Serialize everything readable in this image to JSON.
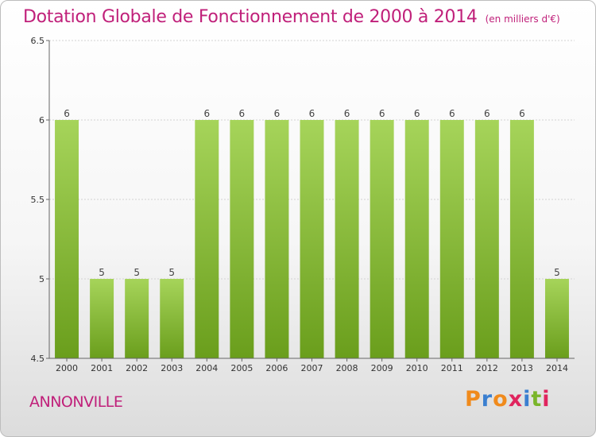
{
  "header": {
    "title": "Dotation Globale de Fonctionnement de 2000 à 2014",
    "subtitle": "(en milliers d'€)"
  },
  "footer": {
    "commune": "ANNONVILLE",
    "logo_letters": [
      "P",
      "r",
      "o",
      "x",
      "i",
      "t",
      "i"
    ],
    "logo_colors": [
      "#f08a1c",
      "#3a7fd0",
      "#f08a1c",
      "#e0245e",
      "#3a7fd0",
      "#7ab52a",
      "#e0245e"
    ]
  },
  "chart_data": {
    "type": "bar",
    "categories": [
      "2000",
      "2001",
      "2002",
      "2003",
      "2004",
      "2005",
      "2006",
      "2007",
      "2008",
      "2009",
      "2010",
      "2011",
      "2012",
      "2013",
      "2014"
    ],
    "values": [
      6,
      5,
      5,
      5,
      6,
      6,
      6,
      6,
      6,
      6,
      6,
      6,
      6,
      6,
      5
    ],
    "data_labels": [
      "6",
      "5",
      "5",
      "5",
      "6",
      "6",
      "6",
      "6",
      "6",
      "6",
      "6",
      "6",
      "6",
      "6",
      "5"
    ],
    "yticks": [
      4.5,
      5,
      5.5,
      6,
      6.5
    ],
    "ytick_labels": [
      "4.5",
      "5",
      "5.5",
      "6",
      "6.5"
    ],
    "ylim": [
      4.5,
      6.5
    ],
    "bar_color_top": "#a6d45a",
    "bar_color_bottom": "#6a9e1c"
  }
}
